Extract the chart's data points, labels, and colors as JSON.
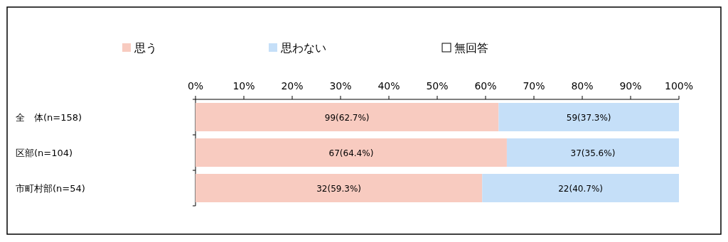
{
  "chart_data": {
    "type": "bar",
    "orientation": "horizontal",
    "stacked": true,
    "legend": "top",
    "categories": [
      "全　体(n=158)",
      "区部(n=104)",
      "市町村部(n=54)"
    ],
    "series": [
      {
        "name": "思う",
        "color": "#f8cbc0",
        "values": [
          62.7,
          64.4,
          59.3
        ],
        "value_labels": [
          "99(62.7%)",
          "67(64.4%)",
          "32(59.3%)"
        ]
      },
      {
        "name": "思わない",
        "color": "#c5dff8",
        "values": [
          37.3,
          35.6,
          40.7
        ],
        "value_labels": [
          "59(37.3%)",
          "37(35.6%)",
          "22(40.7%)"
        ]
      },
      {
        "name": "無回答",
        "color": "#ffffff",
        "values": [
          0,
          0,
          0
        ]
      }
    ],
    "x2lim": [
      0,
      100
    ],
    "x2ticks": [
      {
        "value": 0,
        "label": "0%"
      },
      {
        "value": 10,
        "label": "10%"
      },
      {
        "value": 20,
        "label": "20%"
      },
      {
        "value": 30,
        "label": "30%"
      },
      {
        "value": 40,
        "label": "40%"
      },
      {
        "value": 50,
        "label": "50%"
      },
      {
        "value": 60,
        "label": "60%"
      },
      {
        "value": 70,
        "label": "70%"
      },
      {
        "value": 80,
        "label": "80%"
      },
      {
        "value": 90,
        "label": "90%"
      },
      {
        "value": 100,
        "label": "100%"
      }
    ]
  }
}
